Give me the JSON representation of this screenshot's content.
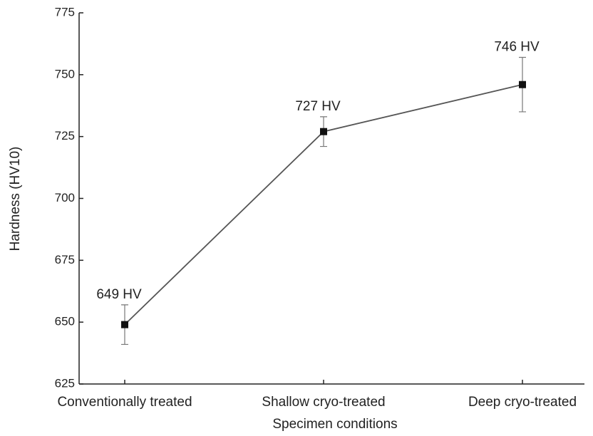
{
  "chart_data": {
    "type": "line",
    "xlabel": "Specimen conditions",
    "ylabel": "Hardness (HV10)",
    "categories": [
      "Conventionally treated",
      "Shallow cryo-treated",
      "Deep cryo-treated"
    ],
    "series": [
      {
        "color": "#555555",
        "values": [
          649,
          727,
          746
        ],
        "errors": [
          8,
          6,
          11
        ],
        "value_labels": [
          "649 HV",
          "727 HV",
          "746 HV"
        ]
      }
    ],
    "ylim": [
      625,
      775
    ],
    "yticks": [
      625,
      650,
      675,
      700,
      725,
      750,
      775
    ]
  }
}
